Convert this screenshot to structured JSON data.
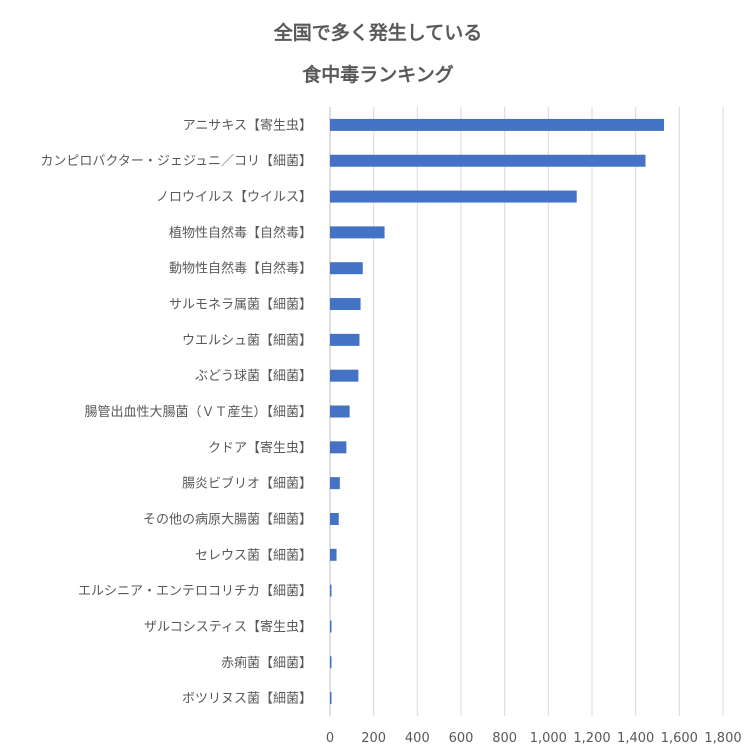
{
  "chart_data": {
    "type": "bar",
    "orientation": "horizontal",
    "title_lines": [
      "全国で多く発生している",
      "食中毒ランキング"
    ],
    "categories": [
      "アニサキス【寄生虫】",
      "カンピロバクター・ジェジュニ／コリ【細菌】",
      "ノロウイルス【ウイルス】",
      "植物性自然毒【自然毒】",
      "動物性自然毒【自然毒】",
      "サルモネラ属菌【細菌】",
      "ウエルシュ菌【細菌】",
      "ぶどう球菌【細菌】",
      "腸管出血性大腸菌（ＶＴ産生）【細菌】",
      "クドア【寄生虫】",
      "腸炎ビブリオ【細菌】",
      "その他の病原大腸菌【細菌】",
      "セレウス菌【細菌】",
      "エルシニア・エンテロコリチカ【細菌】",
      "ザルコシスティス【寄生虫】",
      "赤痢菌【細菌】",
      "ボツリヌス菌【細菌】"
    ],
    "values": [
      1530,
      1445,
      1130,
      250,
      150,
      140,
      135,
      130,
      90,
      75,
      45,
      40,
      30,
      5,
      5,
      5,
      5
    ],
    "xticks": [
      "0",
      "200",
      "400",
      "600",
      "800",
      "1,000",
      "1,200",
      "1,400",
      "1,600",
      "1,800"
    ],
    "xlim": [
      0,
      1800
    ],
    "grid": true,
    "legend": "none",
    "bar_color": "#4472c4"
  }
}
